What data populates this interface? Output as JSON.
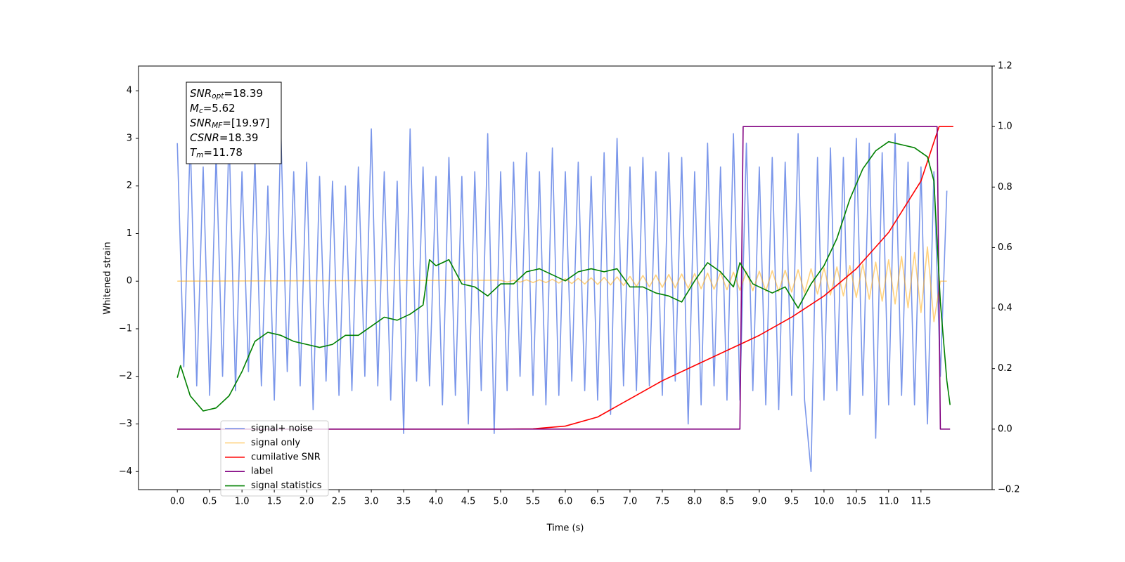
{
  "chart_data": {
    "type": "line",
    "xlabel": "Time (s)",
    "ylabel": "Whitened strain",
    "xlim": [
      -0.6,
      12.6
    ],
    "ylim": [
      -4.38,
      4.52
    ],
    "y2lim": [
      -0.2,
      1.2
    ],
    "xticks": [
      {
        "value": 0,
        "label": "0.0"
      },
      0.5,
      {
        "value": 1,
        "label": "1.0"
      },
      1.5,
      {
        "value": 2,
        "label": "2.0"
      },
      2.5,
      {
        "value": 3,
        "label": "3.0"
      },
      3.5,
      {
        "value": 4,
        "label": "4.0"
      },
      4.5,
      {
        "value": 5,
        "label": "5.0"
      },
      5.5,
      {
        "value": 6,
        "label": "6.0"
      },
      6.5,
      {
        "value": 7,
        "label": "7.0"
      },
      7.5,
      {
        "value": 8,
        "label": "8.0"
      },
      8.5,
      {
        "value": 9,
        "label": "9.0"
      },
      9.5,
      {
        "value": 10,
        "label": "10.0"
      },
      10.5,
      {
        "value": 11,
        "label": "11.0"
      },
      11.5
    ],
    "yticks": [
      {
        "value": -4,
        "label": "−4"
      },
      {
        "value": -3,
        "label": "−3"
      },
      {
        "value": -2,
        "label": "−2"
      },
      {
        "value": -1,
        "label": "−1"
      },
      0,
      1,
      2,
      3,
      4
    ],
    "y2ticks": [
      {
        "value": -0.2,
        "label": "−0.2"
      },
      {
        "value": 0,
        "label": "0.0"
      },
      0.2,
      0.4,
      0.6,
      0.8,
      {
        "value": 1,
        "label": "1.0"
      },
      1.2
    ],
    "legend": "lower left",
    "annotations": [
      {
        "symbol": "SNR",
        "sub": "opt",
        "text": "=18.39"
      },
      {
        "symbol": "M",
        "sub": "c",
        "text": "=5.62"
      },
      {
        "symbol": "SNR",
        "sub": "MF",
        "text": "=[19.97]"
      },
      {
        "symbol": "CSNR",
        "text": "=18.39"
      },
      {
        "symbol": "T",
        "sub": "m",
        "text": "=11.78"
      }
    ],
    "series": [
      {
        "name": "signal+ noise",
        "color": "rgba(65,105,225,0.7)",
        "x": [
          0.0,
          0.1,
          0.2,
          0.3,
          0.4,
          0.5,
          0.6,
          0.7,
          0.8,
          0.9,
          1.0,
          1.1,
          1.2,
          1.3,
          1.4,
          1.5,
          1.6,
          1.7,
          1.8,
          1.9,
          2.0,
          2.1,
          2.2,
          2.3,
          2.4,
          2.5,
          2.6,
          2.7,
          2.8,
          2.9,
          3.0,
          3.1,
          3.2,
          3.3,
          3.4,
          3.5,
          3.6,
          3.7,
          3.8,
          3.9,
          4.0,
          4.1,
          4.2,
          4.3,
          4.4,
          4.5,
          4.6,
          4.7,
          4.8,
          4.9,
          5.0,
          5.1,
          5.2,
          5.3,
          5.4,
          5.5,
          5.6,
          5.7,
          5.8,
          5.9,
          6.0,
          6.1,
          6.2,
          6.3,
          6.4,
          6.5,
          6.6,
          6.7,
          6.8,
          6.9,
          7.0,
          7.1,
          7.2,
          7.3,
          7.4,
          7.5,
          7.6,
          7.7,
          7.8,
          7.9,
          8.0,
          8.1,
          8.2,
          8.3,
          8.4,
          8.5,
          8.6,
          8.7,
          8.8,
          8.9,
          9.0,
          9.1,
          9.2,
          9.3,
          9.4,
          9.5,
          9.6,
          9.7,
          9.8,
          9.9,
          10.0,
          10.1,
          10.2,
          10.3,
          10.4,
          10.5,
          10.6,
          10.7,
          10.8,
          10.9,
          11.0,
          11.1,
          11.2,
          11.3,
          11.4,
          11.5,
          11.6,
          11.7,
          11.8,
          11.9
        ],
        "values": [
          2.9,
          -1.8,
          3.0,
          -2.2,
          2.4,
          -2.4,
          2.7,
          -2.0,
          3.1,
          -2.3,
          2.3,
          -1.9,
          2.6,
          -2.2,
          2.0,
          -2.5,
          3.2,
          -1.9,
          2.3,
          -2.2,
          2.5,
          -2.7,
          2.2,
          -2.1,
          2.1,
          -2.4,
          2.0,
          -2.3,
          2.4,
          -2.0,
          3.2,
          -2.2,
          2.3,
          -2.5,
          2.1,
          -3.2,
          3.2,
          -2.1,
          2.4,
          -2.2,
          2.2,
          -2.6,
          2.6,
          -2.4,
          2.2,
          -3.0,
          2.3,
          -2.3,
          3.1,
          -3.2,
          2.3,
          -2.3,
          2.5,
          -2.0,
          2.7,
          -2.4,
          2.3,
          -2.6,
          2.8,
          -2.4,
          2.3,
          -2.1,
          2.5,
          -2.3,
          2.2,
          -2.5,
          2.7,
          -2.8,
          3.0,
          -2.2,
          2.4,
          -2.3,
          2.6,
          -2.2,
          2.3,
          -2.4,
          2.7,
          -2.1,
          2.6,
          -3.0,
          2.3,
          -2.6,
          2.9,
          -2.2,
          2.4,
          -2.5,
          3.1,
          -2.5,
          2.9,
          -2.3,
          2.4,
          -2.6,
          2.6,
          -2.7,
          2.5,
          -2.4,
          3.1,
          -2.5,
          -4.0,
          2.6,
          -2.5,
          2.8,
          -2.3,
          2.6,
          -2.8,
          3.0,
          -2.4,
          2.9,
          -3.3,
          2.7,
          -2.6,
          3.1,
          -2.4,
          2.5,
          -2.6,
          2.4,
          -3.0,
          2.3,
          -2.0,
          1.9
        ]
      },
      {
        "name": "signal only",
        "color": "rgba(255,165,0,0.5)",
        "x": [
          0.0,
          5.0,
          5.1,
          5.2,
          5.3,
          5.4,
          5.5,
          5.6,
          5.7,
          5.8,
          5.9,
          6.0,
          6.1,
          6.2,
          6.3,
          6.4,
          6.5,
          6.6,
          6.7,
          6.8,
          6.9,
          7.0,
          7.1,
          7.2,
          7.3,
          7.4,
          7.5,
          7.6,
          7.7,
          7.8,
          7.9,
          8.0,
          8.1,
          8.2,
          8.3,
          8.4,
          8.5,
          8.6,
          8.7,
          8.8,
          8.9,
          9.0,
          9.1,
          9.2,
          9.3,
          9.4,
          9.5,
          9.6,
          9.7,
          9.8,
          9.9,
          10.0,
          10.1,
          10.2,
          10.3,
          10.4,
          10.5,
          10.6,
          10.7,
          10.8,
          10.9,
          11.0,
          11.1,
          11.2,
          11.3,
          11.4,
          11.5,
          11.6,
          11.7,
          11.8,
          11.9
        ],
        "values": [
          0,
          0.02,
          -0.02,
          0.02,
          -0.02,
          0.03,
          -0.03,
          0.03,
          -0.03,
          0.04,
          -0.04,
          0.05,
          -0.05,
          0.06,
          -0.06,
          0.07,
          -0.07,
          0.08,
          -0.08,
          0.09,
          -0.09,
          0.1,
          -0.11,
          0.12,
          -0.12,
          0.13,
          -0.13,
          0.14,
          -0.14,
          0.15,
          -0.15,
          0.16,
          -0.16,
          0.17,
          -0.17,
          0.18,
          -0.18,
          0.19,
          -0.19,
          0.2,
          -0.2,
          0.21,
          -0.21,
          0.22,
          -0.22,
          0.23,
          -0.23,
          0.24,
          -0.25,
          0.26,
          -0.27,
          0.28,
          -0.29,
          0.3,
          -0.31,
          0.33,
          -0.34,
          0.36,
          -0.38,
          0.4,
          -0.42,
          0.45,
          -0.48,
          0.52,
          -0.56,
          0.6,
          -0.66,
          0.72,
          -0.85,
          0,
          0
        ]
      },
      {
        "name": "cumilative SNR",
        "color": "#ff0000",
        "axis": "y2",
        "x": [
          0,
          5.0,
          5.5,
          6.0,
          6.5,
          7.0,
          7.5,
          8.0,
          8.5,
          9.0,
          9.5,
          10.0,
          10.5,
          11.0,
          11.5,
          11.78,
          12.0
        ],
        "values": [
          0,
          0,
          0.001,
          0.01,
          0.04,
          0.1,
          0.16,
          0.21,
          0.26,
          0.31,
          0.37,
          0.44,
          0.53,
          0.65,
          0.82,
          1.0,
          1.0
        ]
      },
      {
        "name": "label",
        "color": "#800080",
        "axis": "y2",
        "x": [
          0,
          8.7,
          8.75,
          11.75,
          11.8,
          11.95
        ],
        "values": [
          0,
          0,
          1,
          1,
          0,
          0
        ]
      },
      {
        "name": "signal statistics",
        "color": "#008000",
        "axis": "y2",
        "x": [
          0.0,
          0.05,
          0.2,
          0.4,
          0.6,
          0.8,
          1.0,
          1.2,
          1.4,
          1.6,
          1.8,
          2.0,
          2.2,
          2.4,
          2.6,
          2.8,
          3.0,
          3.2,
          3.4,
          3.6,
          3.8,
          3.9,
          4.0,
          4.2,
          4.4,
          4.6,
          4.8,
          5.0,
          5.2,
          5.4,
          5.6,
          5.8,
          6.0,
          6.2,
          6.4,
          6.6,
          6.8,
          7.0,
          7.2,
          7.4,
          7.6,
          7.8,
          8.0,
          8.2,
          8.4,
          8.6,
          8.7,
          8.9,
          9.0,
          9.2,
          9.4,
          9.6,
          9.8,
          10.0,
          10.2,
          10.4,
          10.6,
          10.8,
          11.0,
          11.2,
          11.4,
          11.6,
          11.7,
          11.8,
          11.9,
          11.95
        ],
        "values": [
          0.17,
          0.21,
          0.11,
          0.06,
          0.07,
          0.11,
          0.19,
          0.29,
          0.32,
          0.31,
          0.29,
          0.28,
          0.27,
          0.28,
          0.31,
          0.31,
          0.34,
          0.37,
          0.36,
          0.38,
          0.41,
          0.56,
          0.54,
          0.56,
          0.48,
          0.47,
          0.44,
          0.48,
          0.48,
          0.52,
          0.53,
          0.51,
          0.49,
          0.52,
          0.53,
          0.52,
          0.53,
          0.47,
          0.47,
          0.45,
          0.44,
          0.42,
          0.49,
          0.55,
          0.52,
          0.47,
          0.55,
          0.48,
          0.47,
          0.45,
          0.47,
          0.4,
          0.48,
          0.54,
          0.63,
          0.76,
          0.86,
          0.92,
          0.95,
          0.94,
          0.93,
          0.9,
          0.82,
          0.42,
          0.16,
          0.08
        ]
      }
    ]
  }
}
